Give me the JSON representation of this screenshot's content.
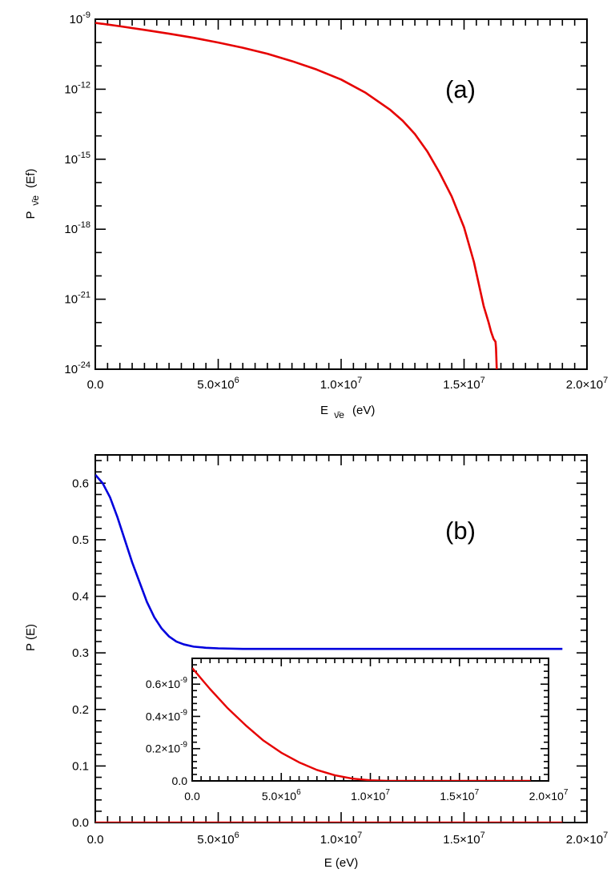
{
  "chart_data": [
    {
      "id": "a",
      "type": "line",
      "panel_label": "(a)",
      "xlabel": "E",
      "xlabel_sub": "ν̄e",
      "xlabel_unit": "(eV)",
      "ylabel": "P",
      "ylabel_sub": "ν̄e",
      "ylabel_arg": "(Ef)",
      "xlim": [
        0,
        20000000
      ],
      "ylim": [
        1e-24,
        1e-09
      ],
      "yscale": "log",
      "x_ticks": [
        {
          "value": 0,
          "mantissa": "0.0",
          "exp": ""
        },
        {
          "value": 5000000,
          "mantissa": "5.0×10",
          "exp": "6"
        },
        {
          "value": 10000000,
          "mantissa": "1.0×10",
          "exp": "7"
        },
        {
          "value": 15000000,
          "mantissa": "1.5×10",
          "exp": "7"
        },
        {
          "value": 20000000,
          "mantissa": "2.0×10",
          "exp": "7"
        }
      ],
      "y_ticks": [
        {
          "value": 1e-24,
          "mantissa": "10",
          "exp": "-24"
        },
        {
          "value": 1e-21,
          "mantissa": "10",
          "exp": "-21"
        },
        {
          "value": 1e-18,
          "mantissa": "10",
          "exp": "-18"
        },
        {
          "value": 1e-15,
          "mantissa": "10",
          "exp": "-15"
        },
        {
          "value": 1e-12,
          "mantissa": "10",
          "exp": "-12"
        },
        {
          "value": 1e-09,
          "mantissa": "10",
          "exp": "-9"
        }
      ],
      "series": [
        {
          "color": "#e60000",
          "x": [
            0,
            1000000,
            2000000,
            3000000,
            4000000,
            5000000,
            6000000,
            7000000,
            8000000,
            9000000,
            10000000,
            11000000,
            12000000,
            12500000,
            13000000,
            13500000,
            14000000,
            14500000,
            15000000,
            15400000,
            15800000,
            16000000,
            16100000,
            16200000,
            16280000,
            16300000,
            16320000,
            16330000
          ],
          "y": [
            7e-10,
            5e-10,
            3.5e-10,
            2.4e-10,
            1.6e-10,
            1e-10,
            6e-11,
            3.3e-11,
            1.6e-11,
            7e-12,
            2.6e-12,
            7e-13,
            1.3e-13,
            4.5e-14,
            1.2e-14,
            2.2e-15,
            2.7e-16,
            2.5e-17,
            1.2e-18,
            4e-20,
            5e-22,
            1e-22,
            4e-23,
            2e-23,
            1.5e-23,
            8e-24,
            2e-24,
            1e-24
          ]
        }
      ]
    },
    {
      "id": "b",
      "type": "line",
      "panel_label": "(b)",
      "xlabel": "E (eV)",
      "ylabel": "P (E)",
      "xlim": [
        0,
        20000000
      ],
      "ylim": [
        0,
        0.65
      ],
      "x_ticks": [
        {
          "value": 0,
          "mantissa": "0.0",
          "exp": ""
        },
        {
          "value": 5000000,
          "mantissa": "5.0×10",
          "exp": "6"
        },
        {
          "value": 10000000,
          "mantissa": "1.0×10",
          "exp": "7"
        },
        {
          "value": 15000000,
          "mantissa": "1.5×10",
          "exp": "7"
        },
        {
          "value": 20000000,
          "mantissa": "2.0×10",
          "exp": "7"
        }
      ],
      "y_ticks": [
        {
          "value": 0.0,
          "label": "0.0"
        },
        {
          "value": 0.1,
          "label": "0.1"
        },
        {
          "value": 0.2,
          "label": "0.2"
        },
        {
          "value": 0.3,
          "label": "0.3"
        },
        {
          "value": 0.4,
          "label": "0.4"
        },
        {
          "value": 0.5,
          "label": "0.5"
        },
        {
          "value": 0.6,
          "label": "0.6"
        }
      ],
      "series": [
        {
          "color": "#0000dd",
          "x": [
            0,
            300000,
            600000,
            900000,
            1200000,
            1500000,
            1800000,
            2100000,
            2400000,
            2700000,
            3000000,
            3300000,
            3600000,
            4000000,
            4500000,
            5000000,
            6000000,
            8000000,
            10000000,
            12000000,
            14000000,
            16000000,
            18000000,
            19000000
          ],
          "y": [
            0.615,
            0.6,
            0.575,
            0.54,
            0.5,
            0.46,
            0.425,
            0.39,
            0.363,
            0.343,
            0.329,
            0.32,
            0.315,
            0.311,
            0.309,
            0.308,
            0.307,
            0.307,
            0.307,
            0.307,
            0.307,
            0.307,
            0.307,
            0.307
          ]
        },
        {
          "color": "#e60000",
          "x": [
            0,
            19000000
          ],
          "y": [
            0,
            0
          ]
        }
      ],
      "inset": {
        "xlim": [
          0,
          20000000
        ],
        "ylim": [
          0,
          7.6e-10
        ],
        "x_ticks": [
          {
            "value": 0,
            "mantissa": "0.0",
            "exp": ""
          },
          {
            "value": 5000000,
            "mantissa": "5.0×10",
            "exp": "6"
          },
          {
            "value": 10000000,
            "mantissa": "1.0×10",
            "exp": "7"
          },
          {
            "value": 15000000,
            "mantissa": "1.5×10",
            "exp": "7"
          },
          {
            "value": 20000000,
            "mantissa": "2.0×10",
            "exp": "7"
          }
        ],
        "y_ticks": [
          {
            "value": 0,
            "mantissa": "0.0",
            "exp": ""
          },
          {
            "value": 2e-10,
            "mantissa": "0.2×10",
            "exp": "-9"
          },
          {
            "value": 4e-10,
            "mantissa": "0.4×10",
            "exp": "-9"
          },
          {
            "value": 6e-10,
            "mantissa": "0.6×10",
            "exp": "-9"
          }
        ],
        "series": [
          {
            "color": "#e60000",
            "x": [
              0,
              1000000,
              2000000,
              3000000,
              4000000,
              5000000,
              6000000,
              7000000,
              8000000,
              9000000,
              10000000,
              11000000,
              12000000,
              14000000,
              16000000,
              17000000,
              19000000
            ],
            "y": [
              7e-10,
              5.7e-10,
              4.5e-10,
              3.45e-10,
              2.5e-10,
              1.75e-10,
              1.15e-10,
              6.8e-11,
              3.5e-11,
              1.4e-11,
              4e-12,
              5e-13,
              0,
              0,
              0,
              0,
              0
            ]
          }
        ]
      }
    }
  ]
}
